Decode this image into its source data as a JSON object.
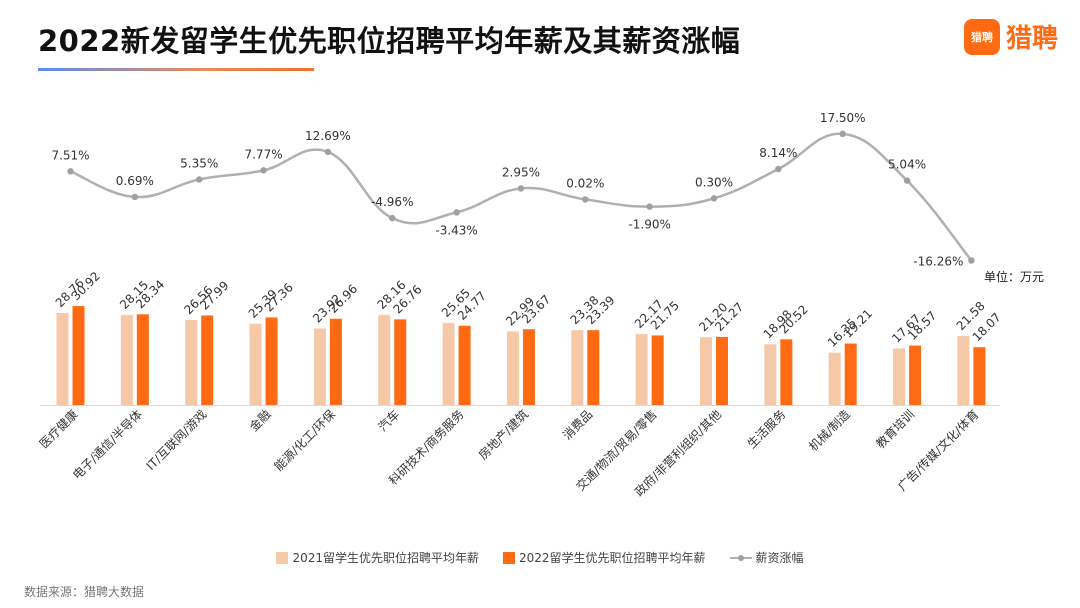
{
  "title": "2022新发留学生优先职位招聘平均年薪及其薪资涨幅",
  "logo": {
    "badge": "猎聘",
    "text": "猎聘"
  },
  "unit_label": "单位：万元",
  "source": "数据来源：猎聘大数据",
  "colors": {
    "bar2021": "#f5c9a8",
    "bar2022": "#ff6a13",
    "line": "#b0b0b0",
    "marker": "#a0a0a0"
  },
  "chart_data": {
    "type": "bar",
    "categories": [
      "医疗健康",
      "电子/通信/半导体",
      "IT/互联网/游戏",
      "金融",
      "能源/化工/环保",
      "汽车",
      "科研技术/商务服务",
      "房地产/建筑",
      "消费品",
      "交通/物流/贸易/零售",
      "政府/非营利组织/其他",
      "生活服务",
      "机械/制造",
      "教育培训",
      "广告/传媒/文化/体育"
    ],
    "series": [
      {
        "name": "2021留学生优先职位招聘平均年薪",
        "type": "bar",
        "values": [
          28.76,
          28.15,
          26.56,
          25.39,
          23.92,
          28.16,
          25.65,
          22.99,
          23.38,
          22.17,
          21.2,
          18.98,
          16.35,
          17.67,
          21.58
        ],
        "labels": [
          "28.76",
          "28.15",
          "26.56",
          "25.39",
          "23.92",
          "28.16",
          "25.65",
          "22.99",
          "23.38",
          "22.17",
          "21.20",
          "18.98",
          "16.35",
          "17.67",
          "21.58"
        ]
      },
      {
        "name": "2022留学生优先职位招聘平均年薪",
        "type": "bar",
        "values": [
          30.92,
          28.34,
          27.99,
          27.36,
          26.96,
          26.76,
          24.77,
          23.67,
          23.39,
          21.75,
          21.27,
          20.52,
          19.21,
          18.57,
          18.07
        ],
        "labels": [
          "30.92",
          "28.34",
          "27.99",
          "27.36",
          "26.96",
          "26.76",
          "24.77",
          "23.67",
          "23.39",
          "21.75",
          "21.27",
          "20.52",
          "19.21",
          "18.57",
          "18.07"
        ]
      },
      {
        "name": "薪资涨幅",
        "type": "line",
        "values": [
          7.51,
          0.69,
          5.35,
          7.77,
          12.69,
          -4.96,
          -3.43,
          2.95,
          0.02,
          -1.9,
          0.3,
          8.14,
          17.5,
          5.04,
          -16.26
        ],
        "labels": [
          "7.51%",
          "0.69%",
          "5.35%",
          "7.77%",
          "12.69%",
          "-4.96%",
          "-3.43%",
          "2.95%",
          "0.02%",
          "-1.90%",
          "0.30%",
          "8.14%",
          "17.50%",
          "5.04%",
          "-16.26%"
        ]
      }
    ],
    "label_positions": [
      "above",
      "above",
      "above",
      "above",
      "above",
      "above",
      "below",
      "above",
      "above",
      "below",
      "above",
      "above",
      "above",
      "above",
      "left"
    ],
    "grid": false,
    "legend_position": "bottom"
  }
}
